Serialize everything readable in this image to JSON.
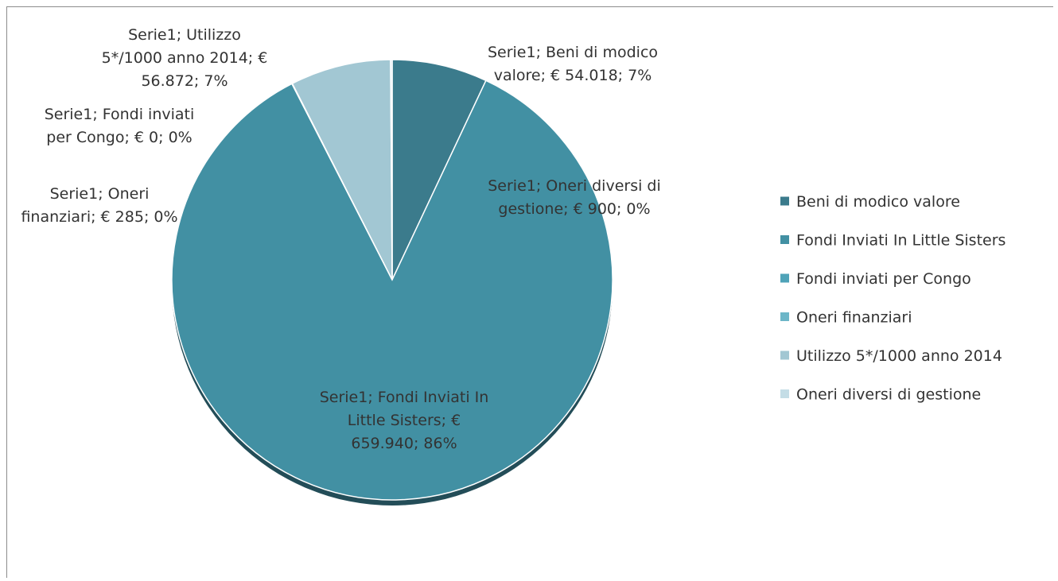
{
  "chart_data": {
    "type": "pie",
    "series_name": "Serie1",
    "legend_position": "right",
    "categories": [
      "Beni di modico valore",
      "Fondi Inviati In Little Sisters",
      "Fondi inviati per Congo",
      "Oneri finanziari",
      "Utilizzo 5*/1000 anno 2014",
      "Oneri diversi di gestione"
    ],
    "values": [
      54018,
      659940,
      0,
      285,
      56872,
      900
    ],
    "colors": [
      "#3b7b8c",
      "#4290a3",
      "#4fa3b8",
      "#6db6c8",
      "#a2c7d3",
      "#c4dde6"
    ],
    "data_labels": [
      [
        "Serie1; Beni di modico",
        "valore; € 54.018; 7%"
      ],
      [
        "Serie1; Fondi Inviati In",
        "Little Sisters; €",
        "659.940; 86%"
      ],
      [
        "Serie1; Fondi inviati",
        "per Congo; € 0; 0%"
      ],
      [
        "Serie1; Oneri",
        "finanziari; € 285; 0%"
      ],
      [
        "Serie1; Utilizzo",
        "5*/1000 anno 2014; €",
        "56.872; 7%"
      ],
      [
        "Serie1; Oneri diversi di",
        "gestione; € 900; 0%"
      ]
    ]
  }
}
